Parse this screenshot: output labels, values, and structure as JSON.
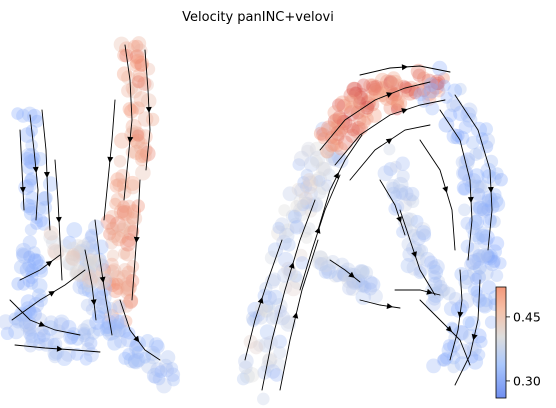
{
  "chart_data": {
    "type": "scatter",
    "title": "Velocity panINC+velovi",
    "xlabel": "",
    "ylabel": "",
    "grid": false,
    "axes_visible": false,
    "colormap": "coolwarm",
    "colorbar": {
      "ticks": [
        0.3,
        0.45
      ],
      "tick_labels": [
        "0.30",
        "0.45"
      ],
      "range": [
        0.26,
        0.52
      ],
      "placement": "bottom-right"
    },
    "overlay": "velocity streamlines (black arrows)",
    "colors": {
      "low": "#3b4cc0",
      "mid": "#dddddd",
      "high": "#b40426"
    }
  }
}
